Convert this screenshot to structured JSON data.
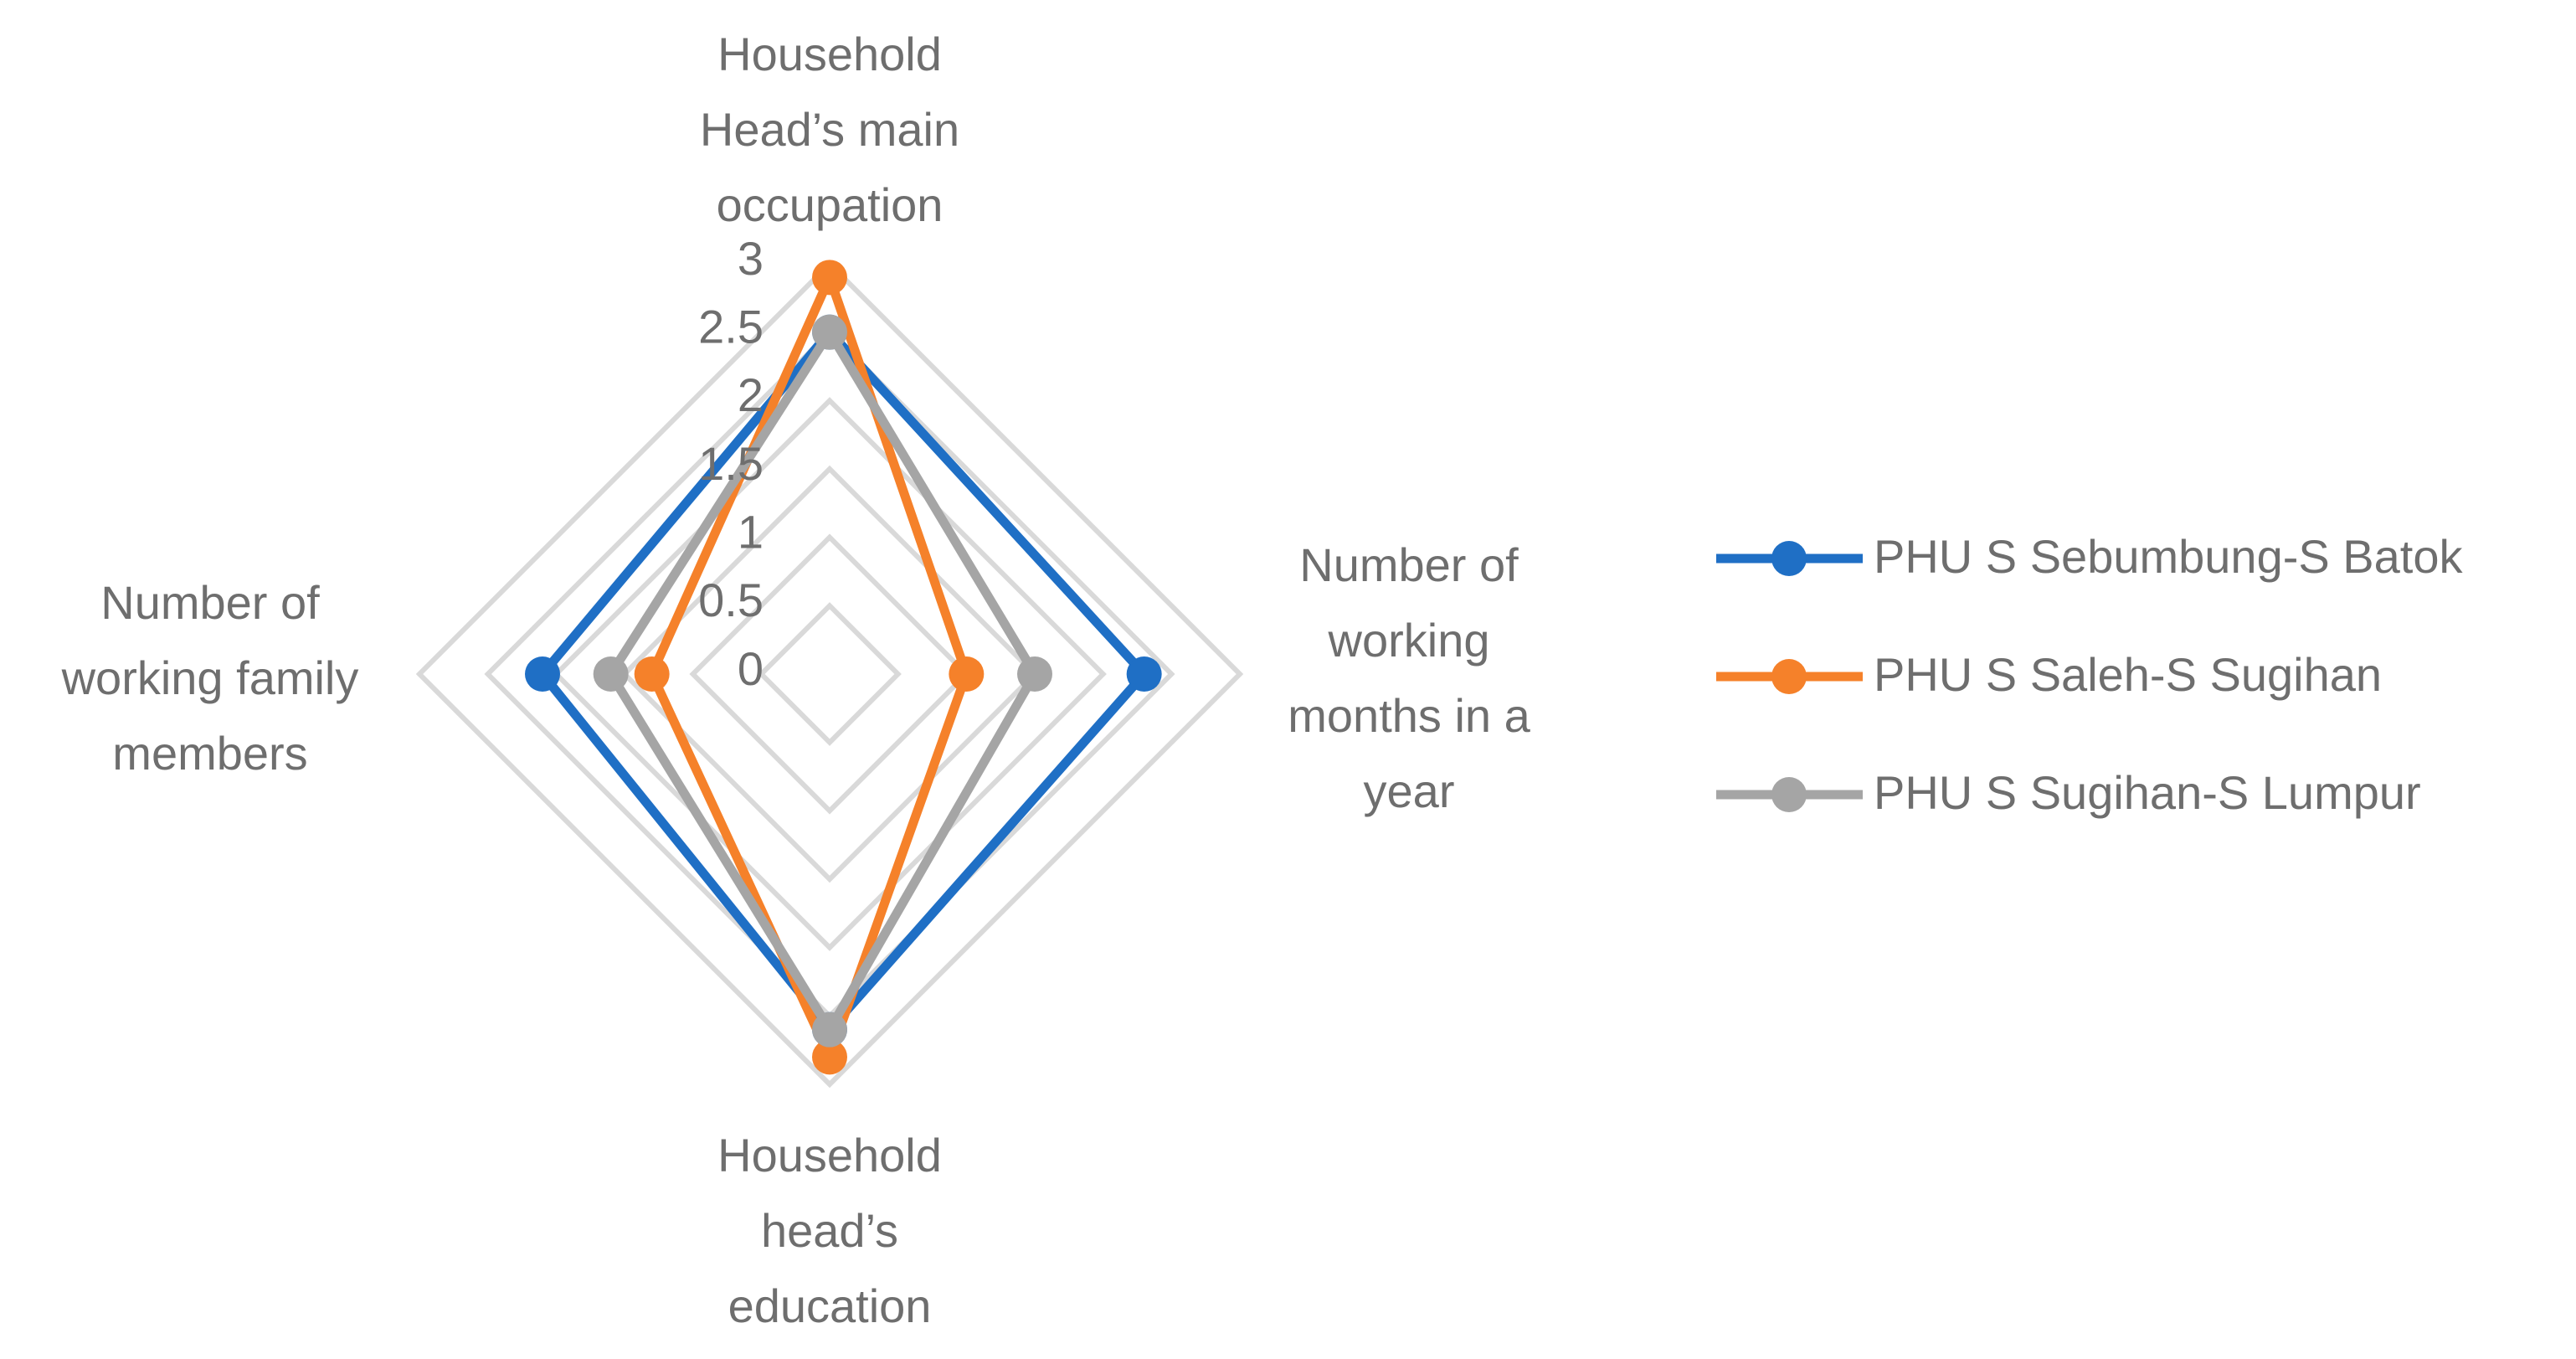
{
  "chart_data": {
    "type": "radar",
    "categories": [
      "Household Head’s main occupation",
      "Number of working months in a year",
      "Household head’s education",
      "Number of working family members"
    ],
    "series": [
      {
        "name": "PHU S Sebumbung-S Batok",
        "color": "#1f6fc5",
        "values": [
          2.5,
          2.3,
          2.6,
          2.1
        ]
      },
      {
        "name": "PHU S Saleh-S Sugihan",
        "color": "#f5812a",
        "values": [
          2.9,
          1.0,
          2.8,
          1.3
        ]
      },
      {
        "name": "PHU S Sugihan-S Lumpur",
        "color": "#a5a5a5",
        "values": [
          2.5,
          1.5,
          2.6,
          1.6
        ]
      }
    ],
    "ylim": [
      0,
      3
    ],
    "yticks": [
      0,
      0.5,
      1,
      1.5,
      2,
      2.5,
      3
    ],
    "grid": true,
    "legend": "right"
  }
}
